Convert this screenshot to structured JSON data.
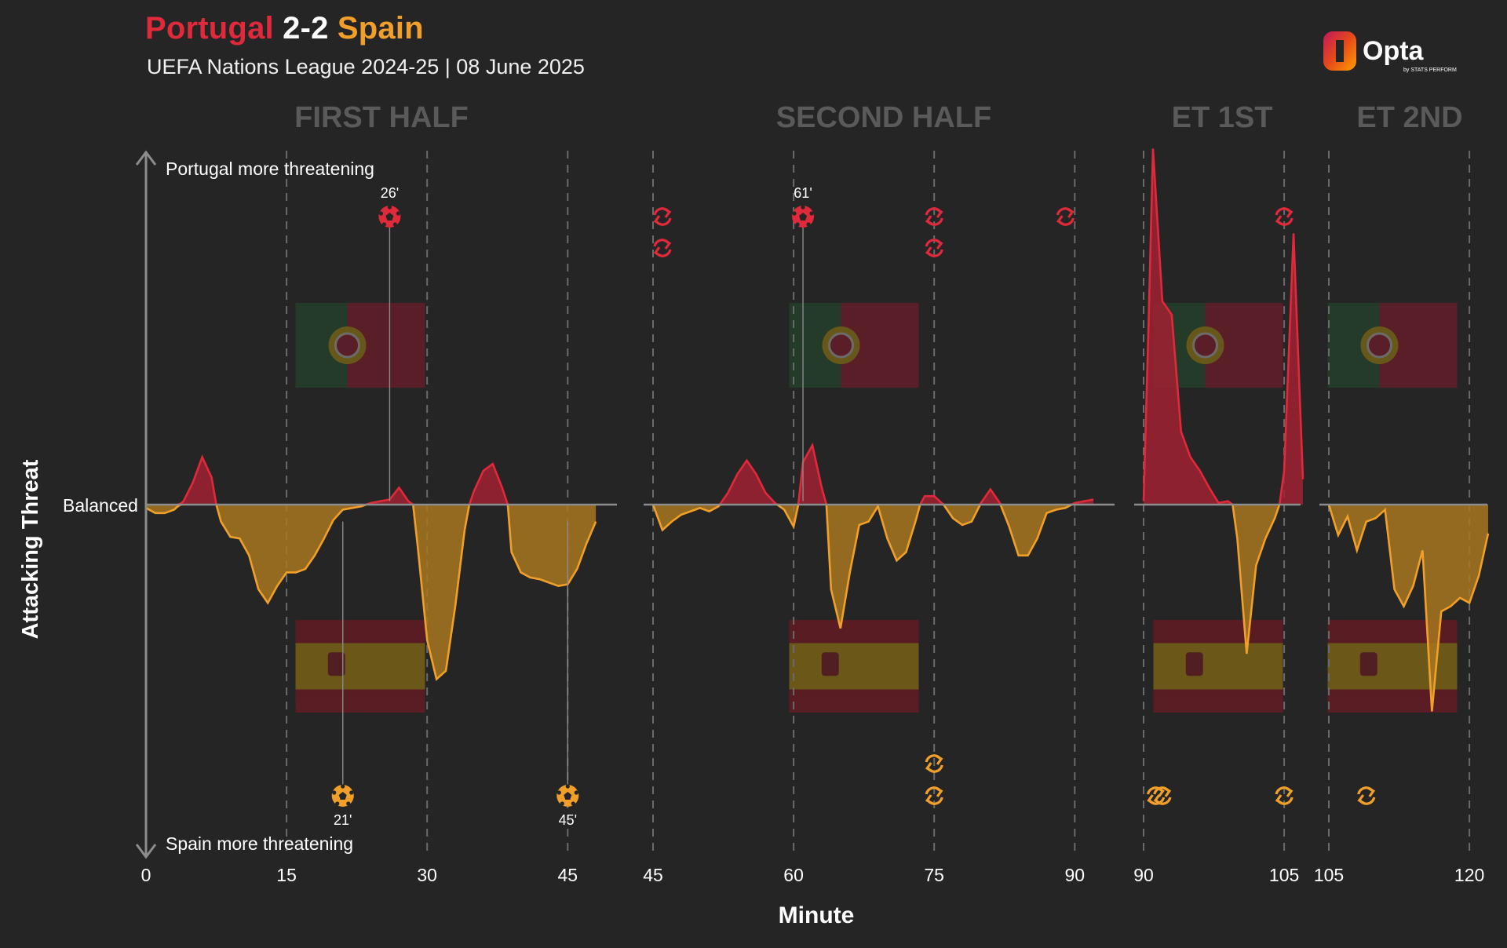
{
  "header": {
    "home_team": "Portugal",
    "score": "2-2",
    "away_team": "Spain",
    "subtitle": "UEFA Nations League 2024-25 | 08 June 2025",
    "logo_text": "Opta",
    "logo_subtext": "by STATS PERFORM"
  },
  "colors": {
    "background": "#252525",
    "home": "#e0293a",
    "home_fill": "#a02131",
    "away": "#f0a02a",
    "away_fill": "#a87520",
    "axis": "#8c8c8c",
    "period_label": "#5a5a5a"
  },
  "icons": {
    "goal": "football-icon",
    "substitution": "substitution-icon",
    "home_flag": "portugal-flag-icon",
    "away_flag": "spain-flag-icon"
  },
  "chart_data": {
    "type": "area",
    "title": "Portugal 2-2 Spain",
    "xlabel": "Minute",
    "ylabel": "Attacking Threat",
    "y_top_label": "Portugal more threatening",
    "y_bottom_label": "Spain more threatening",
    "y_mid_label": "Balanced",
    "ylim": [
      -1,
      1
    ],
    "positive_series": "Portugal",
    "negative_series": "Spain",
    "grid": "dashed vertical lines every 15 minutes",
    "periods": [
      {
        "label": "FIRST HALF",
        "xlim": [
          0,
          50
        ],
        "ticks": [
          "0",
          "15",
          "30",
          "45"
        ],
        "points": [
          [
            0,
            -0.02
          ],
          [
            1,
            -0.05
          ],
          [
            2,
            -0.05
          ],
          [
            3,
            -0.03
          ],
          [
            4,
            0.02
          ],
          [
            5,
            0.13
          ],
          [
            6,
            0.28
          ],
          [
            7,
            0.16
          ],
          [
            7.5,
            0
          ],
          [
            8,
            -0.1
          ],
          [
            9,
            -0.19
          ],
          [
            10,
            -0.2
          ],
          [
            11,
            -0.3
          ],
          [
            12,
            -0.5
          ],
          [
            13,
            -0.58
          ],
          [
            14,
            -0.48
          ],
          [
            15,
            -0.4
          ],
          [
            16,
            -0.4
          ],
          [
            17,
            -0.38
          ],
          [
            18,
            -0.3
          ],
          [
            19,
            -0.2
          ],
          [
            20,
            -0.09
          ],
          [
            21,
            -0.03
          ],
          [
            22,
            -0.02
          ],
          [
            23,
            -0.01
          ],
          [
            24,
            0.01
          ],
          [
            25,
            0.02
          ],
          [
            26,
            0.03
          ],
          [
            27,
            0.1
          ],
          [
            28,
            0.02
          ],
          [
            28.5,
            0
          ],
          [
            29,
            -0.25
          ],
          [
            30,
            -0.8
          ],
          [
            31,
            -1.03
          ],
          [
            32,
            -0.98
          ],
          [
            33,
            -0.6
          ],
          [
            34,
            -0.15
          ],
          [
            34.5,
            0
          ],
          [
            35,
            0.08
          ],
          [
            36,
            0.2
          ],
          [
            37,
            0.24
          ],
          [
            38,
            0.1
          ],
          [
            38.6,
            0
          ],
          [
            39,
            -0.28
          ],
          [
            40,
            -0.4
          ],
          [
            41,
            -0.43
          ],
          [
            42,
            -0.44
          ],
          [
            43,
            -0.46
          ],
          [
            44,
            -0.48
          ],
          [
            45,
            -0.47
          ],
          [
            46,
            -0.38
          ],
          [
            47,
            -0.23
          ],
          [
            48,
            -0.1
          ]
        ]
      },
      {
        "label": "SECOND HALF",
        "xlim": [
          45,
          95
        ],
        "ticks": [
          "45",
          "60",
          "75",
          "90"
        ],
        "points": [
          [
            45,
            0
          ],
          [
            46,
            -0.15
          ],
          [
            47,
            -0.1
          ],
          [
            48,
            -0.06
          ],
          [
            49,
            -0.04
          ],
          [
            50,
            -0.02
          ],
          [
            51,
            -0.04
          ],
          [
            52,
            -0.01
          ],
          [
            53,
            0.07
          ],
          [
            54,
            0.18
          ],
          [
            55,
            0.26
          ],
          [
            56,
            0.18
          ],
          [
            57,
            0.07
          ],
          [
            58,
            0.01
          ],
          [
            59,
            -0.03
          ],
          [
            60,
            -0.13
          ],
          [
            60.5,
            0
          ],
          [
            61,
            0.25
          ],
          [
            62,
            0.35
          ],
          [
            63,
            0.1
          ],
          [
            63.5,
            0
          ],
          [
            64,
            -0.5
          ],
          [
            65,
            -0.73
          ],
          [
            66,
            -0.4
          ],
          [
            67,
            -0.12
          ],
          [
            68,
            -0.1
          ],
          [
            69,
            -0.01
          ],
          [
            70,
            -0.2
          ],
          [
            71,
            -0.33
          ],
          [
            72,
            -0.28
          ],
          [
            73,
            -0.1
          ],
          [
            73.5,
            0
          ],
          [
            74,
            0.05
          ],
          [
            75,
            0.05
          ],
          [
            76,
            0
          ],
          [
            77,
            -0.08
          ],
          [
            78,
            -0.12
          ],
          [
            79,
            -0.1
          ],
          [
            80,
            0.01
          ],
          [
            81,
            0.09
          ],
          [
            82,
            0.01
          ],
          [
            83,
            -0.13
          ],
          [
            84,
            -0.3
          ],
          [
            85,
            -0.3
          ],
          [
            86,
            -0.2
          ],
          [
            87,
            -0.05
          ],
          [
            88,
            -0.03
          ],
          [
            89,
            -0.02
          ],
          [
            90,
            0.01
          ],
          [
            91,
            0.02
          ],
          [
            92,
            0.03
          ]
        ]
      },
      {
        "label": "ET 1ST",
        "xlim": [
          90,
          107
        ],
        "ticks": [
          "90",
          "105"
        ],
        "points": [
          [
            90,
            0.02
          ],
          [
            90.5,
            1
          ],
          [
            91,
            2.1
          ],
          [
            92,
            1.2
          ],
          [
            93,
            1.12
          ],
          [
            94,
            0.43
          ],
          [
            95,
            0.28
          ],
          [
            96,
            0.2
          ],
          [
            97,
            0.1
          ],
          [
            98,
            0.01
          ],
          [
            99,
            0.02
          ],
          [
            99.5,
            0
          ],
          [
            100,
            -0.2
          ],
          [
            101,
            -0.88
          ],
          [
            102,
            -0.36
          ],
          [
            103,
            -0.2
          ],
          [
            104,
            -0.08
          ],
          [
            104.5,
            0
          ],
          [
            105,
            0.2
          ],
          [
            106,
            1.6
          ],
          [
            107,
            0.15
          ]
        ]
      },
      {
        "label": "ET 2ND",
        "xlim": [
          105,
          122
        ],
        "ticks": [
          "105",
          "120"
        ],
        "points": [
          [
            105,
            0
          ],
          [
            106,
            -0.18
          ],
          [
            107,
            -0.07
          ],
          [
            108,
            -0.27
          ],
          [
            109,
            -0.1
          ],
          [
            110,
            -0.08
          ],
          [
            111,
            -0.03
          ],
          [
            112,
            -0.5
          ],
          [
            113,
            -0.6
          ],
          [
            114,
            -0.48
          ],
          [
            115,
            -0.27
          ],
          [
            116,
            -1.22
          ],
          [
            117,
            -0.63
          ],
          [
            118,
            -0.6
          ],
          [
            119,
            -0.55
          ],
          [
            120,
            -0.58
          ],
          [
            121,
            -0.42
          ],
          [
            122,
            -0.17
          ]
        ]
      }
    ],
    "goals": [
      {
        "team": "Portugal",
        "minute": "26'",
        "period": 0,
        "x": 26
      },
      {
        "team": "Portugal",
        "minute": "61'",
        "period": 1,
        "x": 61
      },
      {
        "team": "Spain",
        "minute": "21'",
        "period": 0,
        "x": 21
      },
      {
        "team": "Spain",
        "minute": "45'",
        "period": 0,
        "x": 45
      }
    ],
    "substitutions": [
      {
        "team": "Portugal",
        "period": 1,
        "x": 46,
        "row": 0
      },
      {
        "team": "Portugal",
        "period": 1,
        "x": 46,
        "row": 1
      },
      {
        "team": "Portugal",
        "period": 1,
        "x": 75,
        "row": 0
      },
      {
        "team": "Portugal",
        "period": 1,
        "x": 75,
        "row": 1
      },
      {
        "team": "Portugal",
        "period": 1,
        "x": 89,
        "row": 0
      },
      {
        "team": "Portugal",
        "period": 2,
        "x": 105,
        "row": 0
      },
      {
        "team": "Spain",
        "period": 1,
        "x": 75,
        "row": 0
      },
      {
        "team": "Spain",
        "period": 1,
        "x": 75,
        "row": 1
      },
      {
        "team": "Spain",
        "period": 2,
        "x": 91.3,
        "row": 0
      },
      {
        "team": "Spain",
        "period": 2,
        "x": 92,
        "row": 0
      },
      {
        "team": "Spain",
        "period": 2,
        "x": 105,
        "row": 0
      },
      {
        "team": "Spain",
        "period": 3,
        "x": 109,
        "row": 0
      }
    ]
  }
}
